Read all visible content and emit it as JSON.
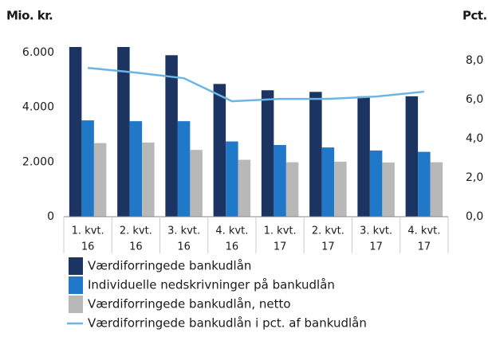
{
  "chart_data": {
    "type": "bar",
    "y_label": "Mio. kr.",
    "y2_label": "Pct.",
    "categories": [
      [
        "1. kvt.",
        "16"
      ],
      [
        "2. kvt.",
        "16"
      ],
      [
        "3. kvt.",
        "16"
      ],
      [
        "4. kvt.",
        "16"
      ],
      [
        "1. kvt.",
        "17"
      ],
      [
        "2. kvt.",
        "17"
      ],
      [
        "3. kvt.",
        "17"
      ],
      [
        "4. kvt.",
        "17"
      ]
    ],
    "series": [
      {
        "name": "Værdiforringede bankudlån",
        "type": "bar",
        "color": "#1c3461",
        "values": [
          6200,
          6200,
          5900,
          4850,
          4620,
          4560,
          4400,
          4400
        ]
      },
      {
        "name": "Individuelle nedskrivninger på bankudlån",
        "type": "bar",
        "color": "#1f78c8",
        "values": [
          3520,
          3490,
          3490,
          2750,
          2620,
          2530,
          2420,
          2370
        ]
      },
      {
        "name": "Værdiforringede bankudlån, netto",
        "type": "bar",
        "color": "#b8b8b8",
        "values": [
          2690,
          2710,
          2440,
          2080,
          1990,
          2010,
          1980,
          1990
        ]
      },
      {
        "name": "Værdiforringede bankudlån i pct. af bankudlån",
        "type": "line",
        "axis": "y2",
        "color": "#6cb4e4",
        "values": [
          7.63,
          7.39,
          7.1,
          5.92,
          6.04,
          6.04,
          6.16,
          6.41
        ]
      }
    ],
    "ylim": [
      0,
      6200
    ],
    "yticks": [
      0,
      {
        "value": 2000,
        "label": "2.000"
      },
      {
        "value": 4000,
        "label": "4.000"
      },
      {
        "value": 6000,
        "label": "6.000"
      }
    ],
    "y2lim": [
      0,
      8.7
    ],
    "y2ticks": [
      {
        "value": 0,
        "label": "0,0"
      },
      {
        "value": 2,
        "label": "2,0"
      },
      {
        "value": 4,
        "label": "4,0"
      },
      {
        "value": 6,
        "label": "6,0"
      },
      {
        "value": 8,
        "label": "8,0"
      }
    ],
    "grid": false,
    "legend": "bottom"
  }
}
